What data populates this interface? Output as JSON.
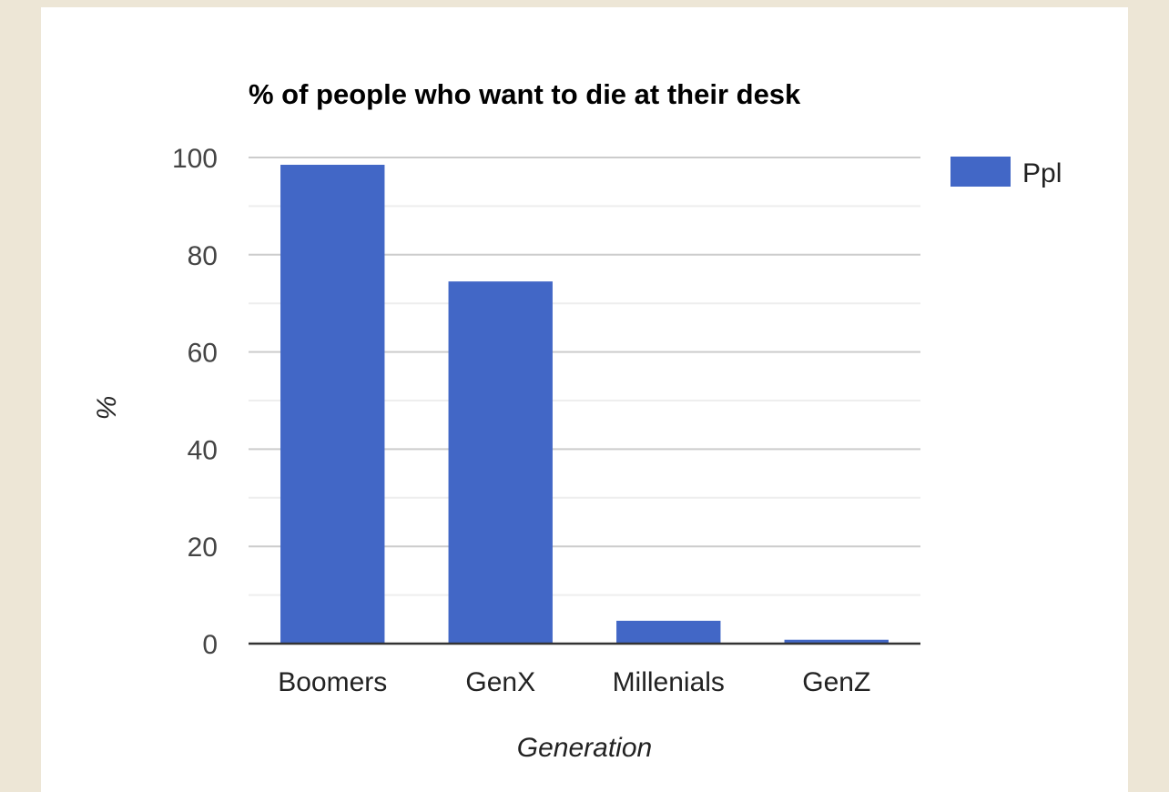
{
  "chart_data": {
    "type": "bar",
    "title": "% of people who want to die at their desk",
    "xlabel": "Generation",
    "ylabel": "%",
    "categories": [
      "Boomers",
      "GenX",
      "Millenials",
      "GenZ"
    ],
    "series": [
      {
        "name": "Ppl",
        "values": [
          98.5,
          74.5,
          4.7,
          0.8
        ]
      }
    ],
    "ylim": [
      0,
      100
    ],
    "yticks": [
      "0",
      "20",
      "40",
      "60",
      "80",
      "100"
    ],
    "grid": true,
    "legend_position": "right",
    "colors": {
      "bar": "#4267c6",
      "grid_major": "#cccccc",
      "grid_minor": "#eeeeee",
      "baseline": "#333333"
    }
  }
}
